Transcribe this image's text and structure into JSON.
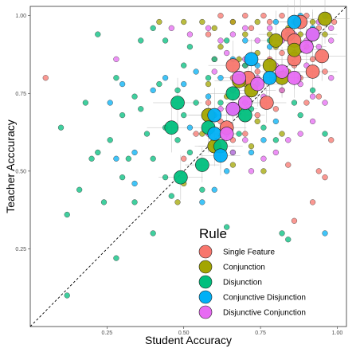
{
  "chart_data": {
    "type": "scatter",
    "title": "",
    "xlabel": "Student Accuracy",
    "ylabel": "Teacher Acccuracy",
    "xlim": [
      0.0,
      1.03
    ],
    "ylim": [
      0.0,
      1.03
    ],
    "x_ticks": [
      0.25,
      0.5,
      0.75,
      1.0
    ],
    "y_ticks": [
      0.25,
      0.5,
      0.75,
      1.0
    ],
    "x_tick_labels": [
      "0.25",
      "0.50",
      "0.75",
      "1.00"
    ],
    "y_tick_labels": [
      "0.25",
      "0.50",
      "0.75",
      "1.00"
    ],
    "reference_line": "y = x (dashed)",
    "grid": false,
    "legend": {
      "title": "Rule",
      "placement": "bottom-right-inside",
      "entries": [
        {
          "name": "Single Feature",
          "color": "#F8766D"
        },
        {
          "name": "Conjunction",
          "color": "#A3A500"
        },
        {
          "name": "Disjunction",
          "color": "#00BF7D"
        },
        {
          "name": "Conjunctive Disjunction",
          "color": "#00B0F6"
        },
        {
          "name": "Disjunctive Conjunction",
          "color": "#E76BF3"
        }
      ]
    },
    "series": [
      {
        "name": "Single Feature",
        "color": "#F8766D",
        "points": [
          [
            0.05,
            0.8
          ],
          [
            0.58,
            0.94
          ],
          [
            0.62,
            1.0
          ],
          [
            0.66,
            0.98
          ],
          [
            0.7,
            1.0
          ],
          [
            0.72,
            0.96
          ],
          [
            0.76,
            1.0
          ],
          [
            0.78,
            0.98
          ],
          [
            0.82,
            1.0
          ],
          [
            0.86,
            0.98
          ],
          [
            0.9,
            1.0
          ],
          [
            0.94,
            0.96
          ],
          [
            0.97,
            1.0
          ],
          [
            0.99,
            0.98
          ],
          [
            0.6,
            0.86
          ],
          [
            0.66,
            0.8
          ],
          [
            0.7,
            0.84
          ],
          [
            0.74,
            0.82
          ],
          [
            0.78,
            0.86
          ],
          [
            0.82,
            0.88
          ],
          [
            0.86,
            0.84
          ],
          [
            0.88,
            0.8
          ],
          [
            0.92,
            0.86
          ],
          [
            0.96,
            0.82
          ],
          [
            0.9,
            0.72
          ],
          [
            0.94,
            0.74
          ],
          [
            0.98,
            0.6
          ],
          [
            0.96,
            0.48
          ],
          [
            0.62,
            0.66
          ],
          [
            0.66,
            0.6
          ],
          [
            0.7,
            0.62
          ],
          [
            0.58,
            0.72
          ],
          [
            0.54,
            0.62
          ],
          [
            0.5,
            0.54
          ],
          [
            0.84,
            0.52
          ],
          [
            0.86,
            0.34
          ],
          [
            0.92,
            0.4
          ],
          [
            0.94,
            0.5
          ],
          [
            0.74,
            0.68
          ],
          [
            0.8,
            0.7
          ]
        ],
        "large": [
          [
            0.84,
            0.94,
            0.06
          ],
          [
            0.88,
            0.98,
            0.05
          ],
          [
            0.86,
            0.86,
            0.06
          ],
          [
            0.95,
            0.87,
            0.05
          ],
          [
            0.92,
            0.82,
            0.05
          ],
          [
            0.66,
            0.84,
            0.05
          ],
          [
            0.71,
            0.8,
            0.05
          ],
          [
            0.77,
            0.72,
            0.04
          ],
          [
            0.64,
            0.64,
            0.04
          ],
          [
            0.86,
            0.92,
            0.04
          ]
        ]
      },
      {
        "name": "Conjunction",
        "color": "#A3A500",
        "points": [
          [
            0.42,
            0.98
          ],
          [
            0.5,
            0.98
          ],
          [
            0.56,
            0.98
          ],
          [
            0.6,
            0.96
          ],
          [
            0.66,
            0.98
          ],
          [
            0.7,
            0.94
          ],
          [
            0.74,
            0.98
          ],
          [
            0.78,
            0.94
          ],
          [
            0.84,
            0.96
          ],
          [
            0.88,
            0.94
          ],
          [
            0.92,
            0.98
          ],
          [
            0.96,
            0.94
          ],
          [
            0.62,
            0.9
          ],
          [
            0.68,
            0.86
          ],
          [
            0.74,
            0.88
          ],
          [
            0.8,
            0.9
          ],
          [
            0.84,
            0.82
          ],
          [
            0.9,
            0.9
          ],
          [
            0.58,
            0.78
          ],
          [
            0.64,
            0.74
          ],
          [
            0.68,
            0.7
          ],
          [
            0.7,
            0.78
          ],
          [
            0.74,
            0.66
          ],
          [
            0.82,
            0.76
          ],
          [
            0.56,
            0.62
          ],
          [
            0.6,
            0.58
          ],
          [
            0.66,
            0.52
          ],
          [
            0.72,
            0.58
          ],
          [
            0.76,
            0.5
          ],
          [
            0.5,
            0.46
          ],
          [
            0.48,
            0.4
          ],
          [
            0.82,
            0.62
          ]
        ],
        "large": [
          [
            0.96,
            0.99,
            0.05
          ],
          [
            0.86,
            0.89,
            0.05
          ],
          [
            0.8,
            0.92,
            0.06
          ],
          [
            0.78,
            0.84,
            0.05
          ],
          [
            0.72,
            0.76,
            0.05
          ],
          [
            0.68,
            0.79,
            0.05
          ],
          [
            0.58,
            0.68,
            0.04
          ],
          [
            0.6,
            0.58,
            0.04
          ],
          [
            0.82,
            0.8,
            0.04
          ]
        ]
      },
      {
        "name": "Disjunction",
        "color": "#00BF7D",
        "points": [
          [
            0.1,
            0.64
          ],
          [
            0.12,
            0.36
          ],
          [
            0.12,
            0.1
          ],
          [
            0.18,
            0.72
          ],
          [
            0.2,
            0.54
          ],
          [
            0.22,
            0.94
          ],
          [
            0.22,
            0.56
          ],
          [
            0.24,
            0.4
          ],
          [
            0.26,
            0.6
          ],
          [
            0.28,
            0.8
          ],
          [
            0.3,
            0.68
          ],
          [
            0.32,
            0.54
          ],
          [
            0.34,
            0.4
          ],
          [
            0.34,
            0.74
          ],
          [
            0.36,
            0.7
          ],
          [
            0.38,
            0.62
          ],
          [
            0.4,
            0.54
          ],
          [
            0.4,
            0.3
          ],
          [
            0.42,
            0.78
          ],
          [
            0.44,
            0.64
          ],
          [
            0.44,
            0.48
          ],
          [
            0.46,
            0.42
          ],
          [
            0.48,
            0.6
          ],
          [
            0.48,
            0.76
          ],
          [
            0.5,
            0.68
          ],
          [
            0.5,
            0.84
          ],
          [
            0.52,
            0.56
          ],
          [
            0.54,
            0.72
          ],
          [
            0.56,
            0.44
          ],
          [
            0.58,
            0.8
          ],
          [
            0.6,
            0.68
          ],
          [
            0.62,
            0.72
          ],
          [
            0.64,
            0.92
          ],
          [
            0.64,
            0.32
          ],
          [
            0.66,
            0.56
          ],
          [
            0.68,
            0.62
          ],
          [
            0.7,
            0.84
          ],
          [
            0.72,
            0.7
          ],
          [
            0.74,
            0.78
          ],
          [
            0.76,
            0.64
          ],
          [
            0.78,
            0.92
          ],
          [
            0.8,
            0.6
          ],
          [
            0.82,
            0.3
          ],
          [
            0.84,
            0.28
          ],
          [
            0.86,
            0.72
          ],
          [
            0.88,
            0.68
          ],
          [
            0.92,
            0.76
          ],
          [
            0.96,
            0.62
          ],
          [
            0.28,
            0.22
          ],
          [
            0.3,
            0.48
          ],
          [
            0.16,
            0.44
          ],
          [
            0.36,
            0.92
          ],
          [
            0.4,
            0.96
          ],
          [
            0.44,
            0.92
          ],
          [
            0.6,
            0.86
          ],
          [
            0.52,
            0.9
          ]
        ],
        "large": [
          [
            0.49,
            0.48,
            0.045
          ],
          [
            0.46,
            0.64,
            0.05
          ],
          [
            0.48,
            0.72,
            0.05
          ],
          [
            0.58,
            0.64,
            0.05
          ],
          [
            0.62,
            0.58,
            0.045
          ],
          [
            0.66,
            0.75,
            0.05
          ],
          [
            0.7,
            0.68,
            0.04
          ],
          [
            0.56,
            0.52,
            0.035
          ]
        ]
      },
      {
        "name": "Conjunctive Disjunction",
        "color": "#00B0F6",
        "points": [
          [
            0.26,
            0.72
          ],
          [
            0.3,
            0.78
          ],
          [
            0.28,
            0.54
          ],
          [
            0.34,
            0.56
          ],
          [
            0.4,
            0.76
          ],
          [
            0.44,
            0.8
          ],
          [
            0.5,
            0.78
          ],
          [
            0.54,
            0.82
          ],
          [
            0.58,
            0.74
          ],
          [
            0.62,
            0.8
          ],
          [
            0.66,
            0.86
          ],
          [
            0.7,
            0.92
          ],
          [
            0.74,
            0.84
          ],
          [
            0.78,
            0.9
          ],
          [
            0.8,
            0.98
          ],
          [
            0.84,
            0.94
          ],
          [
            0.88,
            1.0
          ],
          [
            0.92,
            0.96
          ],
          [
            0.96,
            1.0
          ],
          [
            0.96,
            0.3
          ],
          [
            0.72,
            0.56
          ],
          [
            0.76,
            0.6
          ],
          [
            0.8,
            0.66
          ],
          [
            0.64,
            0.5
          ],
          [
            0.6,
            0.44
          ],
          [
            0.56,
            0.4
          ],
          [
            0.34,
            0.46
          ],
          [
            0.52,
            0.64
          ]
        ],
        "large": [
          [
            0.6,
            0.68,
            0.055
          ],
          [
            0.66,
            0.7,
            0.05
          ],
          [
            0.6,
            0.62,
            0.045
          ],
          [
            0.72,
            0.86,
            0.04
          ],
          [
            0.78,
            0.8,
            0.045
          ],
          [
            0.86,
            0.98,
            0.05
          ],
          [
            0.92,
            0.94,
            0.045
          ],
          [
            0.62,
            0.55,
            0.04
          ]
        ]
      },
      {
        "name": "Disjunctive Conjunction",
        "color": "#E76BF3",
        "points": [
          [
            0.28,
            0.86
          ],
          [
            0.46,
            0.96
          ],
          [
            0.52,
            0.94
          ],
          [
            0.58,
            0.96
          ],
          [
            0.62,
            0.92
          ],
          [
            0.66,
            0.94
          ],
          [
            0.7,
            0.96
          ],
          [
            0.74,
            0.92
          ],
          [
            0.78,
            0.96
          ],
          [
            0.82,
            0.92
          ],
          [
            0.86,
            0.94
          ],
          [
            0.9,
            0.92
          ],
          [
            0.94,
            0.98
          ],
          [
            0.98,
            0.96
          ],
          [
            0.64,
            0.88
          ],
          [
            0.7,
            0.86
          ],
          [
            0.74,
            0.8
          ],
          [
            0.8,
            0.84
          ],
          [
            0.86,
            0.88
          ],
          [
            0.9,
            0.84
          ],
          [
            0.94,
            0.9
          ],
          [
            0.98,
            0.92
          ],
          [
            0.6,
            0.82
          ],
          [
            0.66,
            0.76
          ],
          [
            0.7,
            0.72
          ],
          [
            0.76,
            0.74
          ],
          [
            0.82,
            0.76
          ],
          [
            0.88,
            0.78
          ],
          [
            0.92,
            0.74
          ],
          [
            0.62,
            0.7
          ],
          [
            0.58,
            0.62
          ],
          [
            0.64,
            0.62
          ],
          [
            0.66,
            0.56
          ],
          [
            0.7,
            0.6
          ],
          [
            0.72,
            0.5
          ],
          [
            0.76,
            0.54
          ],
          [
            0.8,
            0.56
          ],
          [
            0.84,
            0.6
          ],
          [
            0.88,
            0.62
          ],
          [
            0.92,
            0.66
          ],
          [
            0.96,
            0.72
          ],
          [
            0.98,
            0.8
          ]
        ],
        "large": [
          [
            0.92,
            0.94,
            0.05
          ],
          [
            0.9,
            0.9,
            0.04
          ],
          [
            0.82,
            0.82,
            0.05
          ],
          [
            0.74,
            0.78,
            0.045
          ],
          [
            0.68,
            0.8,
            0.045
          ],
          [
            0.64,
            0.62,
            0.04
          ],
          [
            0.7,
            0.72,
            0.04
          ],
          [
            0.86,
            0.8,
            0.04
          ],
          [
            0.66,
            0.7,
            0.04
          ]
        ]
      }
    ]
  }
}
